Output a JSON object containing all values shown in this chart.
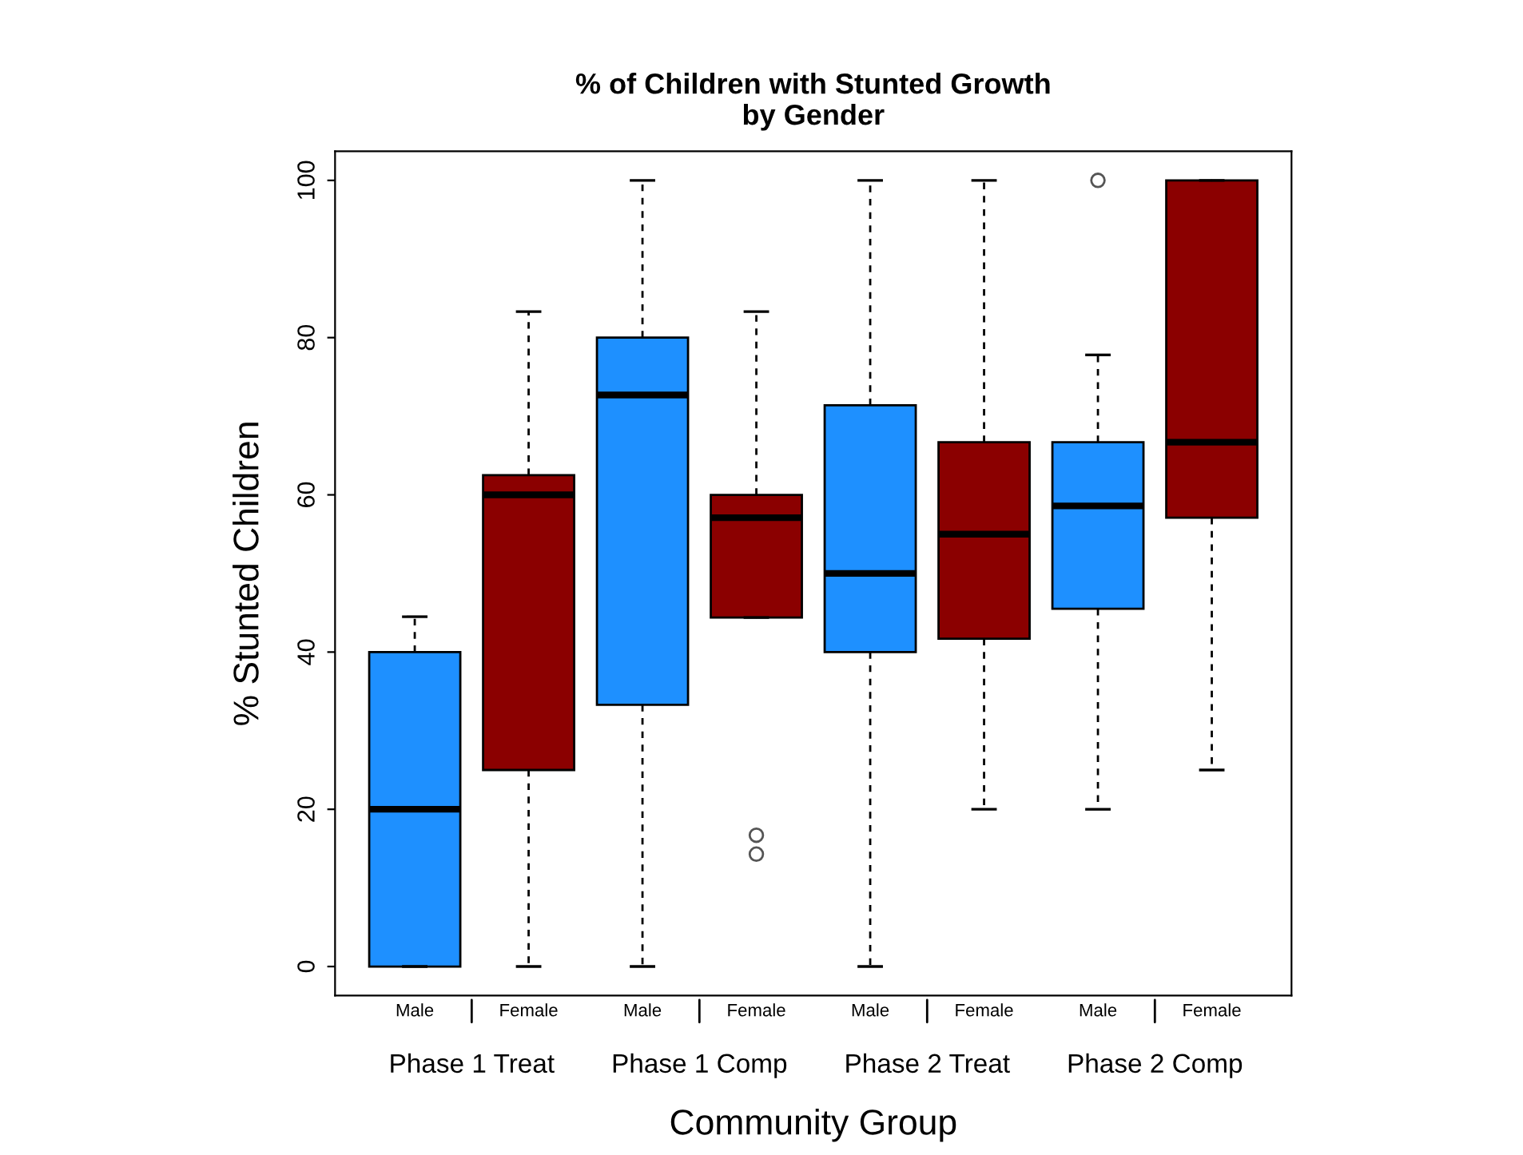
{
  "chart_data": {
    "type": "box",
    "title": "% of Children with Stunted Growth\nby Gender",
    "xlabel": "Community Group",
    "ylabel": "% Stunted Children",
    "categories": [
      "Male",
      "Female",
      "Male",
      "Female",
      "Male",
      "Female",
      "Male",
      "Female"
    ],
    "annotations": [
      "Phase 1 Treat",
      "Phase 1 Comp",
      "Phase 2 Treat",
      "Phase 2 Comp"
    ],
    "colors": [
      "#1e90ff",
      "#8b0000",
      "#1e90ff",
      "#8b0000",
      "#1e90ff",
      "#8b0000",
      "#1e90ff",
      "#8b0000"
    ],
    "boxes": [
      {
        "low": 0,
        "q1": 0,
        "median": 20,
        "q3": 40,
        "high": 44.5
      },
      {
        "low": 0,
        "q1": 25,
        "median": 60,
        "q3": 62.5,
        "high": 83.3
      },
      {
        "low": 0,
        "q1": 33.3,
        "median": 72.7,
        "q3": 80,
        "high": 100
      },
      {
        "low": 44.4,
        "q1": 44.4,
        "median": 57.1,
        "q3": 60,
        "high": 83.3,
        "outliers": [
          16.7,
          14.3
        ]
      },
      {
        "low": 0,
        "q1": 40,
        "median": 50,
        "q3": 71.4,
        "high": 100
      },
      {
        "low": 20,
        "q1": 41.7,
        "median": 55,
        "q3": 66.7,
        "high": 100
      },
      {
        "low": 20,
        "q1": 45.5,
        "median": 58.6,
        "q3": 66.7,
        "high": 77.8,
        "outliers": [
          100
        ]
      },
      {
        "low": 25,
        "q1": 57.1,
        "median": 66.7,
        "q3": 100,
        "high": 100
      }
    ],
    "ylim": [
      -3.7,
      103.7
    ],
    "yticks": [
      0,
      20,
      40,
      60,
      80,
      100
    ],
    "grid": false
  }
}
